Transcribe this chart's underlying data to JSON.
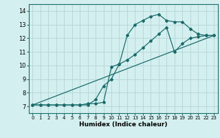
{
  "xlabel": "Humidex (Indice chaleur)",
  "xlim": [
    -0.5,
    23.5
  ],
  "ylim": [
    6.5,
    14.5
  ],
  "xticks": [
    0,
    1,
    2,
    3,
    4,
    5,
    6,
    7,
    8,
    9,
    10,
    11,
    12,
    13,
    14,
    15,
    16,
    17,
    18,
    19,
    20,
    21,
    22,
    23
  ],
  "yticks": [
    7,
    8,
    9,
    10,
    11,
    12,
    13,
    14
  ],
  "bg_color": "#d4efef",
  "grid_color": "#b8d8d8",
  "line_color": "#1a6b6b",
  "line1_x": [
    0,
    1,
    2,
    3,
    4,
    5,
    6,
    7,
    8,
    9,
    10,
    11,
    12,
    13,
    14,
    15,
    16,
    17,
    18,
    19,
    20,
    21,
    22,
    23
  ],
  "line1_y": [
    7.1,
    7.1,
    7.1,
    7.1,
    7.1,
    7.1,
    7.1,
    7.2,
    7.2,
    7.3,
    9.9,
    10.1,
    12.2,
    13.0,
    13.3,
    13.6,
    13.75,
    13.3,
    13.2,
    13.2,
    12.7,
    12.3,
    12.2,
    12.2
  ],
  "line2_x": [
    0,
    1,
    2,
    3,
    4,
    5,
    6,
    7,
    8,
    9,
    10,
    11,
    12,
    13,
    14,
    15,
    16,
    17,
    18,
    19,
    20,
    21,
    22,
    23
  ],
  "line2_y": [
    7.1,
    7.1,
    7.1,
    7.1,
    7.1,
    7.1,
    7.1,
    7.1,
    7.5,
    8.5,
    9.0,
    10.1,
    10.4,
    10.8,
    11.3,
    11.8,
    12.3,
    12.8,
    11.0,
    11.6,
    12.0,
    12.1,
    12.2,
    12.2
  ],
  "line3_x": [
    0,
    23
  ],
  "line3_y": [
    7.1,
    12.2
  ]
}
